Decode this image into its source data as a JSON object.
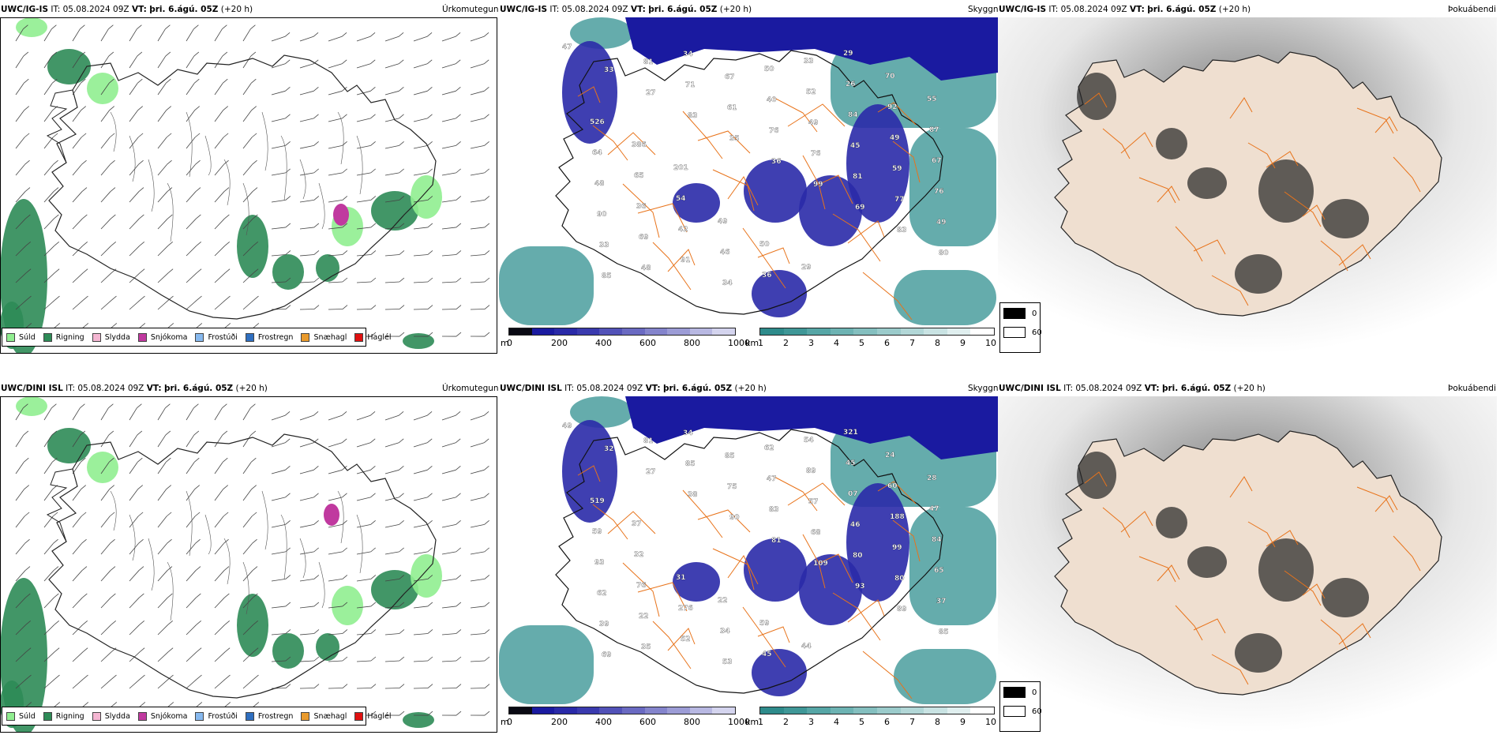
{
  "rows": [
    {
      "model": "UWC/IG-IS",
      "it": "IT: 05.08.2024 09Z",
      "vt_label": "VT:",
      "vt": "þri. 6.ágú. 05Z",
      "lead": "(+20 h)",
      "elev_labels": [
        "47",
        "33",
        "27",
        "83",
        "35",
        "36",
        "99",
        "69",
        "83",
        "80",
        "85",
        "81",
        "71",
        "61",
        "76",
        "76",
        "81",
        "77",
        "49",
        "33",
        "48",
        "34",
        "67",
        "40",
        "49",
        "45",
        "59",
        "76",
        "90",
        "69",
        "91",
        "34",
        "50",
        "52",
        "84",
        "49",
        "67",
        "48",
        "36",
        "42",
        "46",
        "36",
        "33",
        "26",
        "92",
        "87",
        "64",
        "65",
        "54",
        "49",
        "50",
        "29",
        "29",
        "70",
        "55",
        "526",
        "386",
        "201"
      ]
    },
    {
      "model": "UWC/DINI ISL",
      "it": "IT: 05.08.2024 09Z",
      "vt_label": "VT:",
      "vt": "þri. 6.ágú. 05Z",
      "lead": "(+20 h)",
      "elev_labels": [
        "49",
        "32",
        "27",
        "38",
        "90",
        "81",
        "109",
        "93",
        "89",
        "85",
        "69",
        "81",
        "85",
        "75",
        "83",
        "68",
        "80",
        "80",
        "37",
        "39",
        "35",
        "34",
        "85",
        "47",
        "57",
        "46",
        "99",
        "65",
        "62",
        "22",
        "52",
        "53",
        "62",
        "89",
        "07",
        "188",
        "84",
        "93",
        "76",
        "276",
        "34",
        "45",
        "54",
        "45",
        "60",
        "47",
        "59",
        "32",
        "31",
        "22",
        "59",
        "44",
        "321",
        "24",
        "28",
        "519",
        "37"
      ]
    }
  ],
  "panels": {
    "precip_type": {
      "title": "Úrkomutegund",
      "legend": [
        {
          "label": "Súld",
          "color": "#90ee90"
        },
        {
          "label": "Rigning",
          "color": "#2e8b57"
        },
        {
          "label": "Slydda",
          "color": "#f4b6d2"
        },
        {
          "label": "Snjókoma",
          "color": "#c0399f"
        },
        {
          "label": "Frostúði",
          "color": "#87b9ef"
        },
        {
          "label": "Frostregn",
          "color": "#2f6fc0"
        },
        {
          "label": "Snæhagl",
          "color": "#e99a2c"
        },
        {
          "label": "Haglél",
          "color": "#e01010"
        }
      ]
    },
    "ceiling": {
      "title": "Skyggni",
      "cloudbase_unit": "m",
      "cloudbase_ticks": [
        "0",
        "200",
        "400",
        "600",
        "800",
        "1000"
      ],
      "visibility_unit": "km",
      "visibility_ticks": [
        "1",
        "2",
        "3",
        "4",
        "5",
        "6",
        "7",
        "8",
        "9",
        "10"
      ]
    },
    "fog": {
      "title": "Þokuábendi",
      "legend": [
        {
          "label": "0",
          "color": "#000000"
        },
        {
          "label": "60",
          "color": "#ffffff"
        }
      ]
    }
  },
  "colors": {
    "cloudbase_scale": [
      "#0a0a14",
      "#1a1aa0",
      "#2a2aa8",
      "#3a3aae",
      "#5252b8",
      "#6a6ac2",
      "#8484cc",
      "#9c9cd6",
      "#b8b8e2",
      "#d4d4ee"
    ],
    "visibility_scale": [
      "#2e8b8b",
      "#3f9797",
      "#56a6a6",
      "#6db3b3",
      "#84bfbf",
      "#9bcbcb",
      "#b2d7d7",
      "#c9e3e3",
      "#e0efef",
      "#ffffff"
    ],
    "road": "#e8731a",
    "coast": "#000000"
  }
}
